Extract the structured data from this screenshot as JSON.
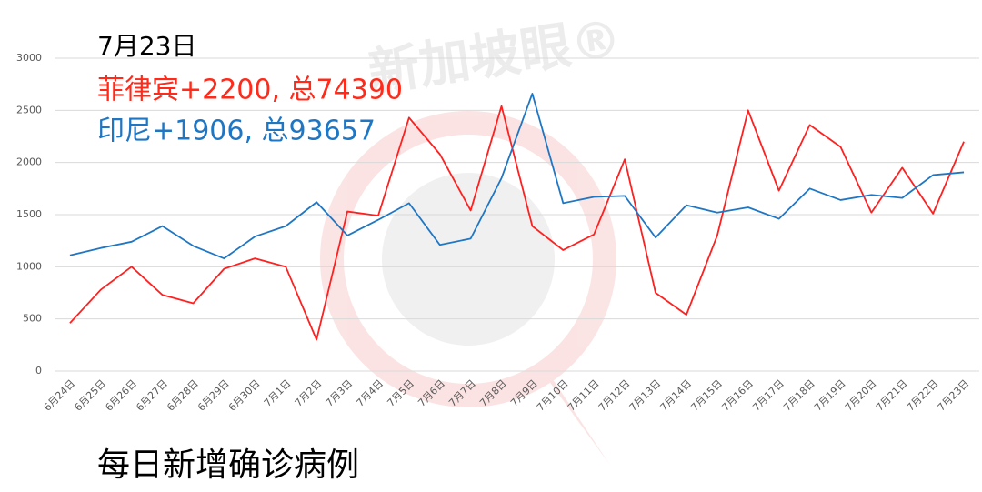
{
  "chart_data": {
    "type": "line",
    "title": "7月23日",
    "subtitle": "每日新增确诊病例",
    "watermark": "新加坡眼®",
    "annotations": [
      {
        "text": "菲律宾+2200, 总74390",
        "color": "#ff2a1a"
      },
      {
        "text": "印尼+1906, 总93657",
        "color": "#1f77c4"
      }
    ],
    "categories": [
      "6月24日",
      "6月25日",
      "6月26日",
      "6月27日",
      "6月28日",
      "6月29日",
      "6月30日",
      "7月1日",
      "7月2日",
      "7月3日",
      "7月4日",
      "7月5日",
      "7月6日",
      "7月7日",
      "7月8日",
      "7月9日",
      "7月10日",
      "7月11日",
      "7月12日",
      "7月13日",
      "7月14日",
      "7月15日",
      "7月16日",
      "7月17日",
      "7月18日",
      "7月19日",
      "7月20日",
      "7月21日",
      "7月22日",
      "7月23日"
    ],
    "series": [
      {
        "color": "#ff2020",
        "values": [
          460,
          780,
          1000,
          730,
          650,
          980,
          1080,
          1000,
          300,
          1530,
          1490,
          2430,
          2080,
          1540,
          2540,
          1390,
          1160,
          1310,
          2030,
          750,
          540,
          1300,
          2500,
          1730,
          2360,
          2150,
          1520,
          1950,
          1510,
          2200
        ]
      },
      {
        "color": "#1f77c4",
        "values": [
          1110,
          1180,
          1240,
          1390,
          1200,
          1080,
          1290,
          1390,
          1620,
          1300,
          1450,
          1610,
          1210,
          1270,
          1850,
          2660,
          1610,
          1670,
          1680,
          1280,
          1590,
          1520,
          1570,
          1460,
          1750,
          1640,
          1690,
          1660,
          1880,
          1906
        ]
      }
    ],
    "ylim": [
      0,
      3000
    ],
    "yticks": [
      0,
      500,
      1000,
      1500,
      2000,
      2500,
      3000
    ],
    "grid": true
  }
}
